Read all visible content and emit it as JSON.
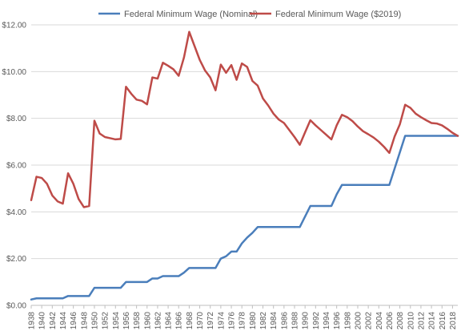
{
  "chart_data": {
    "type": "line",
    "title": "",
    "xlabel": "",
    "ylabel": "",
    "ylim": [
      0,
      12
    ],
    "xlim": [
      1938,
      2019
    ],
    "y_ticks": [
      0,
      2,
      4,
      6,
      8,
      10,
      12
    ],
    "y_tick_labels": [
      "$0.00",
      "$2.00",
      "$4.00",
      "$6.00",
      "$8.00",
      "$10.00",
      "$12.00"
    ],
    "x_ticks": [
      1938,
      1940,
      1942,
      1944,
      1946,
      1948,
      1950,
      1952,
      1954,
      1956,
      1958,
      1960,
      1962,
      1964,
      1966,
      1968,
      1970,
      1972,
      1974,
      1976,
      1978,
      1980,
      1982,
      1984,
      1986,
      1988,
      1990,
      1992,
      1994,
      1996,
      1998,
      2000,
      2002,
      2004,
      2006,
      2008,
      2010,
      2012,
      2014,
      2016,
      2018
    ],
    "grid": "horizontal",
    "legend": "top",
    "colors": {
      "nominal": "#4a7ebb",
      "real": "#be4b48",
      "grid": "#d9d9d9",
      "axis": "#bfbfbf"
    },
    "series": [
      {
        "name": "Federal Minimum Wage (Nominal)",
        "x": [
          1938,
          1939,
          1940,
          1941,
          1942,
          1943,
          1944,
          1945,
          1946,
          1947,
          1948,
          1949,
          1950,
          1951,
          1952,
          1953,
          1954,
          1955,
          1956,
          1957,
          1958,
          1959,
          1960,
          1961,
          1962,
          1963,
          1964,
          1965,
          1966,
          1967,
          1968,
          1969,
          1970,
          1971,
          1972,
          1973,
          1974,
          1975,
          1976,
          1977,
          1978,
          1979,
          1980,
          1981,
          1982,
          1983,
          1984,
          1985,
          1986,
          1987,
          1988,
          1989,
          1990,
          1991,
          1992,
          1993,
          1994,
          1995,
          1996,
          1997,
          1998,
          1999,
          2000,
          2001,
          2002,
          2003,
          2004,
          2005,
          2006,
          2007,
          2008,
          2009,
          2010,
          2011,
          2012,
          2013,
          2014,
          2015,
          2016,
          2017,
          2018,
          2019
        ],
        "values": [
          0.25,
          0.3,
          0.3,
          0.3,
          0.3,
          0.3,
          0.3,
          0.4,
          0.4,
          0.4,
          0.4,
          0.4,
          0.75,
          0.75,
          0.75,
          0.75,
          0.75,
          0.75,
          1.0,
          1.0,
          1.0,
          1.0,
          1.0,
          1.15,
          1.15,
          1.25,
          1.25,
          1.25,
          1.25,
          1.4,
          1.6,
          1.6,
          1.6,
          1.6,
          1.6,
          1.6,
          2.0,
          2.1,
          2.3,
          2.3,
          2.65,
          2.9,
          3.1,
          3.35,
          3.35,
          3.35,
          3.35,
          3.35,
          3.35,
          3.35,
          3.35,
          3.35,
          3.8,
          4.25,
          4.25,
          4.25,
          4.25,
          4.25,
          4.75,
          5.15,
          5.15,
          5.15,
          5.15,
          5.15,
          5.15,
          5.15,
          5.15,
          5.15,
          5.15,
          5.85,
          6.55,
          7.25,
          7.25,
          7.25,
          7.25,
          7.25,
          7.25,
          7.25,
          7.25,
          7.25,
          7.25,
          7.25
        ]
      },
      {
        "name": "Federal Minimum Wage ($2019)",
        "x": [
          1938,
          1939,
          1940,
          1941,
          1942,
          1943,
          1944,
          1945,
          1946,
          1947,
          1948,
          1949,
          1950,
          1951,
          1952,
          1953,
          1954,
          1955,
          1956,
          1957,
          1958,
          1959,
          1960,
          1961,
          1962,
          1963,
          1964,
          1965,
          1966,
          1967,
          1968,
          1969,
          1970,
          1971,
          1972,
          1973,
          1974,
          1975,
          1976,
          1977,
          1978,
          1979,
          1980,
          1981,
          1982,
          1983,
          1984,
          1985,
          1986,
          1987,
          1988,
          1989,
          1990,
          1991,
          1992,
          1993,
          1994,
          1995,
          1996,
          1997,
          1998,
          1999,
          2000,
          2001,
          2002,
          2003,
          2004,
          2005,
          2006,
          2007,
          2008,
          2009,
          2010,
          2011,
          2012,
          2013,
          2014,
          2015,
          2016,
          2017,
          2018,
          2019
        ],
        "values": [
          4.5,
          5.5,
          5.45,
          5.2,
          4.7,
          4.45,
          4.35,
          5.65,
          5.2,
          4.55,
          4.2,
          4.25,
          7.9,
          7.35,
          7.2,
          7.15,
          7.1,
          7.12,
          9.35,
          9.05,
          8.8,
          8.75,
          8.6,
          9.75,
          9.7,
          10.38,
          10.25,
          10.1,
          9.82,
          10.6,
          11.7,
          11.1,
          10.5,
          10.05,
          9.75,
          9.2,
          10.3,
          9.95,
          10.28,
          9.65,
          10.35,
          10.2,
          9.6,
          9.4,
          8.85,
          8.55,
          8.2,
          7.95,
          7.8,
          7.5,
          7.2,
          6.87,
          7.4,
          7.92,
          7.7,
          7.5,
          7.3,
          7.1,
          7.7,
          8.15,
          8.05,
          7.88,
          7.65,
          7.45,
          7.32,
          7.18,
          7.0,
          6.78,
          6.52,
          7.22,
          7.75,
          8.58,
          8.45,
          8.2,
          8.05,
          7.92,
          7.8,
          7.78,
          7.7,
          7.55,
          7.38,
          7.25
        ]
      }
    ]
  }
}
